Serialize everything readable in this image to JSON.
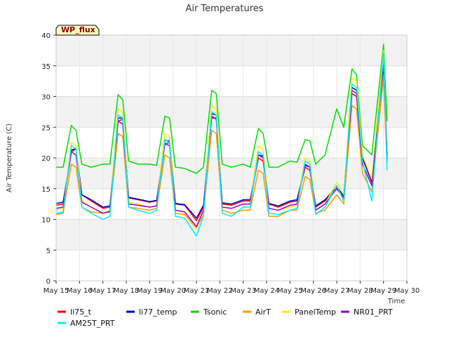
{
  "chart_data": {
    "type": "line",
    "title": "Air Temperatures",
    "xlabel": "Time",
    "ylabel": "Air Temperature (C)",
    "badge": "WP_flux",
    "x_unit": "day of May (day start = label)",
    "xlim": [
      15,
      30
    ],
    "ylim": [
      0,
      40
    ],
    "x_ticks": [
      {
        "value": 15,
        "label": "May 15"
      },
      {
        "value": 16,
        "label": "May 16"
      },
      {
        "value": 17,
        "label": "May 17"
      },
      {
        "value": 18,
        "label": "May 18"
      },
      {
        "value": 19,
        "label": "May 19"
      },
      {
        "value": 20,
        "label": "May 20"
      },
      {
        "value": 21,
        "label": "May 21"
      },
      {
        "value": 22,
        "label": "May 22"
      },
      {
        "value": 23,
        "label": "May 23"
      },
      {
        "value": 24,
        "label": "May 24"
      },
      {
        "value": 25,
        "label": "May 25"
      },
      {
        "value": 26,
        "label": "May 26"
      },
      {
        "value": 27,
        "label": "May 27"
      },
      {
        "value": 28,
        "label": "May 28"
      },
      {
        "value": 29,
        "label": "May 29"
      },
      {
        "value": 30,
        "label": "May 30"
      }
    ],
    "y_ticks": [
      0,
      5,
      10,
      15,
      20,
      25,
      30,
      35,
      40
    ],
    "grid": true,
    "legend_position": "bottom",
    "series": [
      {
        "name": "li75_t",
        "color": "#ff0000",
        "x": [
          15.0,
          15.3,
          15.65,
          15.85,
          16.1,
          16.5,
          17.0,
          17.3,
          17.65,
          17.85,
          18.1,
          18.5,
          19.0,
          19.3,
          19.65,
          19.85,
          20.1,
          20.5,
          21.0,
          21.3,
          21.65,
          21.85,
          22.1,
          22.5,
          23.0,
          23.3,
          23.65,
          23.85,
          24.1,
          24.5,
          25.0,
          25.3,
          25.65,
          25.85,
          26.1,
          26.5,
          27.0,
          27.3,
          27.65,
          27.85,
          28.1,
          28.5,
          29.0,
          29.15
        ],
        "y": [
          12.3,
          12.5,
          21.0,
          21.5,
          14.0,
          13.0,
          11.8,
          12.0,
          26.0,
          26.3,
          13.5,
          13.2,
          12.8,
          13.0,
          22.3,
          22.5,
          12.5,
          12.3,
          9.8,
          12.0,
          26.5,
          26.5,
          12.5,
          12.3,
          13.0,
          13.0,
          20.0,
          19.5,
          12.5,
          12.0,
          12.8,
          13.0,
          18.5,
          18.0,
          12.0,
          13.0,
          15.0,
          13.5,
          31.0,
          30.5,
          20.0,
          16.0,
          36.5,
          20.5
        ]
      },
      {
        "name": "li77_temp",
        "color": "#0000cc",
        "x": [
          15.0,
          15.3,
          15.65,
          15.85,
          16.1,
          16.5,
          17.0,
          17.3,
          17.65,
          17.85,
          18.1,
          18.5,
          19.0,
          19.3,
          19.65,
          19.85,
          20.1,
          20.5,
          21.0,
          21.3,
          21.65,
          21.85,
          22.1,
          22.5,
          23.0,
          23.3,
          23.65,
          23.85,
          24.1,
          24.5,
          25.0,
          25.3,
          25.65,
          25.85,
          26.1,
          26.5,
          27.0,
          27.3,
          27.65,
          27.85,
          28.1,
          28.5,
          29.0,
          29.15
        ],
        "y": [
          12.6,
          12.8,
          21.3,
          21.5,
          14.0,
          13.2,
          12.0,
          12.2,
          26.5,
          26.5,
          13.6,
          13.3,
          12.9,
          13.1,
          22.8,
          22.8,
          12.6,
          12.4,
          10.2,
          12.3,
          27.2,
          27.0,
          12.7,
          12.5,
          13.2,
          13.2,
          20.5,
          20.3,
          12.6,
          12.2,
          13.0,
          13.2,
          18.8,
          18.5,
          12.2,
          13.2,
          15.3,
          13.8,
          31.5,
          31.0,
          20.0,
          16.2,
          35.0,
          20.0
        ]
      },
      {
        "name": "Tsonic",
        "color": "#00dd00",
        "x": [
          15.0,
          15.3,
          15.65,
          15.85,
          16.1,
          16.5,
          17.0,
          17.3,
          17.65,
          17.85,
          18.1,
          18.5,
          19.0,
          19.3,
          19.65,
          19.85,
          20.1,
          20.5,
          21.0,
          21.3,
          21.65,
          21.85,
          22.1,
          22.5,
          23.0,
          23.3,
          23.65,
          23.85,
          24.1,
          24.5,
          25.0,
          25.3,
          25.65,
          25.85,
          26.1,
          26.5,
          27.0,
          27.3,
          27.65,
          27.85,
          28.1,
          28.5,
          29.0,
          29.15
        ],
        "y": [
          18.5,
          18.5,
          25.3,
          24.5,
          19.0,
          18.5,
          19.0,
          19.0,
          30.3,
          29.5,
          19.5,
          19.0,
          19.0,
          18.8,
          26.8,
          26.5,
          18.5,
          18.3,
          17.5,
          18.5,
          31.0,
          30.5,
          19.0,
          18.5,
          19.0,
          18.5,
          24.8,
          24.0,
          18.5,
          18.5,
          19.5,
          19.3,
          23.0,
          22.8,
          19.0,
          20.5,
          28.0,
          25.0,
          34.5,
          33.5,
          22.0,
          20.5,
          38.5,
          26.0
        ]
      },
      {
        "name": "AirT",
        "color": "#ff9900",
        "x": [
          15.0,
          15.3,
          15.65,
          15.85,
          16.1,
          16.5,
          17.0,
          17.3,
          17.65,
          17.85,
          18.1,
          18.5,
          19.0,
          19.3,
          19.65,
          19.85,
          20.1,
          20.5,
          21.0,
          21.3,
          21.65,
          21.85,
          22.1,
          22.5,
          23.0,
          23.3,
          23.65,
          23.85,
          24.1,
          24.5,
          25.0,
          25.3,
          25.65,
          25.85,
          26.1,
          26.5,
          27.0,
          27.3,
          27.65,
          27.85,
          28.1,
          28.5,
          29.0,
          29.15
        ],
        "y": [
          10.8,
          11.0,
          19.0,
          18.5,
          12.0,
          11.2,
          11.0,
          11.2,
          24.0,
          23.5,
          12.0,
          11.8,
          11.5,
          11.8,
          20.5,
          20.0,
          11.0,
          10.8,
          8.5,
          10.8,
          24.5,
          24.0,
          11.5,
          11.0,
          11.5,
          11.5,
          18.0,
          17.5,
          10.5,
          10.5,
          11.5,
          11.5,
          17.0,
          16.5,
          11.0,
          11.5,
          14.0,
          12.5,
          28.5,
          28.0,
          17.5,
          14.5,
          33.0,
          19.0
        ]
      },
      {
        "name": "PanelTemp",
        "color": "#ffee00",
        "x": [
          15.0,
          15.3,
          15.65,
          15.85,
          16.1,
          16.5,
          17.0,
          17.3,
          17.65,
          17.85,
          18.1,
          18.5,
          19.0,
          19.3,
          19.65,
          19.85,
          20.1,
          20.5,
          21.0,
          21.3,
          21.65,
          21.85,
          22.1,
          22.5,
          23.0,
          23.3,
          23.65,
          23.85,
          24.1,
          24.5,
          25.0,
          25.3,
          25.65,
          25.85,
          26.1,
          26.5,
          27.0,
          27.3,
          27.65,
          27.85,
          28.1,
          28.5,
          29.0,
          29.15
        ],
        "y": [
          11.5,
          11.8,
          22.5,
          22.0,
          13.0,
          12.0,
          11.0,
          11.5,
          28.0,
          27.5,
          12.8,
          12.5,
          12.0,
          12.3,
          24.0,
          23.5,
          11.5,
          11.3,
          8.5,
          11.5,
          28.5,
          28.0,
          12.0,
          11.8,
          12.5,
          12.5,
          22.0,
          21.5,
          11.8,
          11.5,
          12.0,
          12.3,
          20.0,
          19.5,
          11.5,
          12.5,
          16.0,
          14.0,
          33.0,
          32.5,
          20.5,
          16.5,
          37.5,
          19.0
        ]
      },
      {
        "name": "NR01_PRT",
        "color": "#9900cc",
        "x": [
          15.0,
          15.3,
          15.65,
          15.85,
          16.1,
          16.5,
          17.0,
          17.3,
          17.65,
          17.85,
          18.1,
          18.5,
          19.0,
          19.3,
          19.65,
          19.85,
          20.1,
          20.5,
          21.0,
          21.3,
          21.65,
          21.85,
          22.1,
          22.5,
          23.0,
          23.3,
          23.65,
          23.85,
          24.1,
          24.5,
          25.0,
          25.3,
          25.65,
          25.85,
          26.1,
          26.5,
          27.0,
          27.3,
          27.65,
          27.85,
          28.1,
          28.5,
          29.0,
          29.15
        ],
        "y": [
          11.8,
          12.0,
          21.0,
          20.5,
          12.8,
          12.0,
          11.0,
          11.3,
          26.0,
          25.5,
          12.5,
          12.3,
          12.0,
          12.2,
          22.3,
          22.0,
          11.5,
          11.2,
          8.8,
          11.5,
          26.8,
          26.3,
          12.0,
          11.8,
          12.5,
          12.5,
          20.5,
          20.0,
          11.8,
          11.5,
          12.3,
          12.5,
          19.0,
          18.5,
          11.5,
          12.5,
          15.0,
          13.5,
          30.5,
          30.0,
          19.0,
          15.5,
          35.5,
          19.5
        ]
      },
      {
        "name": "AM25T_PRT",
        "color": "#00eeff",
        "x": [
          15.0,
          15.3,
          15.65,
          15.85,
          16.1,
          16.5,
          17.0,
          17.3,
          17.65,
          17.85,
          18.1,
          18.5,
          19.0,
          19.3,
          19.65,
          19.85,
          20.1,
          20.5,
          21.0,
          21.3,
          21.65,
          21.85,
          22.1,
          22.5,
          23.0,
          23.3,
          23.65,
          23.85,
          24.1,
          24.5,
          25.0,
          25.3,
          25.65,
          25.85,
          26.1,
          26.5,
          27.0,
          27.3,
          27.65,
          27.85,
          28.1,
          28.5,
          29.0,
          29.15
        ],
        "y": [
          11.0,
          11.2,
          22.0,
          21.5,
          12.0,
          11.0,
          10.0,
          10.5,
          27.0,
          26.5,
          12.0,
          11.5,
          11.0,
          11.5,
          23.0,
          22.5,
          10.5,
          10.2,
          7.3,
          10.5,
          27.5,
          27.0,
          11.0,
          10.5,
          12.0,
          12.0,
          21.0,
          20.5,
          11.0,
          10.8,
          11.5,
          11.8,
          19.5,
          19.0,
          10.8,
          12.0,
          15.5,
          13.0,
          32.0,
          31.5,
          19.5,
          13.0,
          37.0,
          18.0
        ]
      }
    ]
  }
}
